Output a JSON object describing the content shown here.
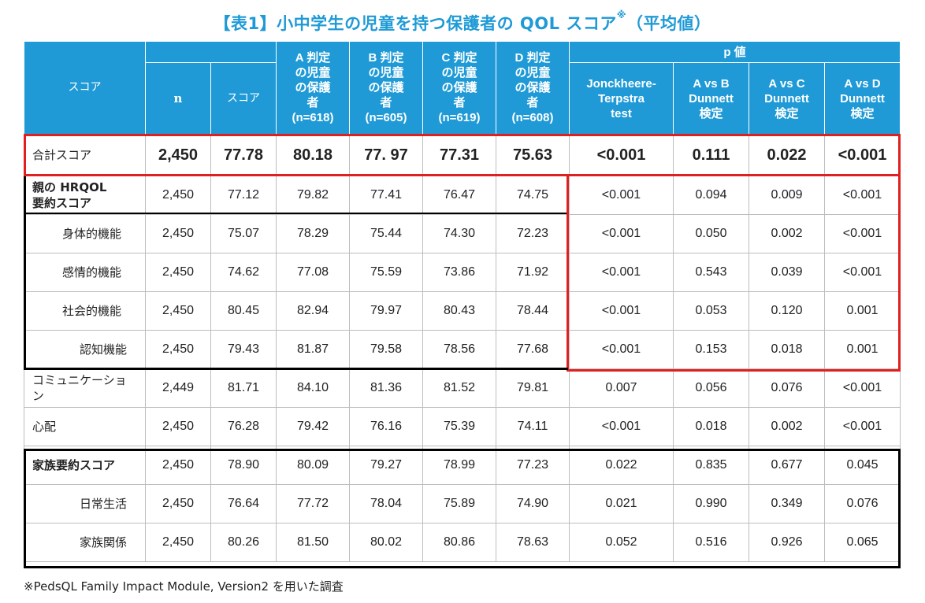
{
  "title": "【表1】小中学生の児童を持つ保護者の QOL スコア",
  "title_mark": "※",
  "title_suffix": "（平均値）",
  "headers": {
    "score": "スコア",
    "n": "n",
    "score_col": "スコア",
    "groups": [
      {
        "l1": "A 判定",
        "l2": "の児童",
        "l3": "の保護",
        "l4": "者",
        "l5": "(n=618)"
      },
      {
        "l1": "B 判定",
        "l2": "の児童",
        "l3": "の保護",
        "l4": "者",
        "l5": "(n=605)"
      },
      {
        "l1": "C 判定",
        "l2": "の児童",
        "l3": "の保護",
        "l4": "者",
        "l5": "(n=619)"
      },
      {
        "l1": "D 判定",
        "l2": "の児童",
        "l3": "の保護",
        "l4": "者",
        "l5": "(n=608)"
      }
    ],
    "p_value": "p 値",
    "tests": [
      {
        "l1": "Jonckheere-",
        "l2": "Terpstra",
        "l3": "test"
      },
      {
        "l1": "A vs B",
        "l2": "Dunnett",
        "l3": "検定"
      },
      {
        "l1": "A vs C",
        "l2": "Dunnett",
        "l3": "検定"
      },
      {
        "l1": "A vs D",
        "l2": "Dunnett",
        "l3": "検定"
      }
    ]
  },
  "rows": [
    {
      "label": "合計スコア",
      "v": [
        "2,450",
        "77.78",
        "80.18",
        "77. 97",
        "77.31",
        "75.63",
        "<0.001",
        "0.111",
        "0.022",
        "<0.001"
      ]
    },
    {
      "label": "親の HRQOL",
      "label2": "要約スコア",
      "v": [
        "2,450",
        "77.12",
        "79.82",
        "77.41",
        "76.47",
        "74.75",
        "<0.001",
        "0.094",
        "0.009",
        "<0.001"
      ]
    },
    {
      "label": "身体的機能",
      "v": [
        "2,450",
        "75.07",
        "78.29",
        "75.44",
        "74.30",
        "72.23",
        "<0.001",
        "0.050",
        "0.002",
        "<0.001"
      ]
    },
    {
      "label": "感情的機能",
      "v": [
        "2,450",
        "74.62",
        "77.08",
        "75.59",
        "73.86",
        "71.92",
        "<0.001",
        "0.543",
        "0.039",
        "<0.001"
      ]
    },
    {
      "label": "社会的機能",
      "v": [
        "2,450",
        "80.45",
        "82.94",
        "79.97",
        "80.43",
        "78.44",
        "<0.001",
        "0.053",
        "0.120",
        "0.001"
      ]
    },
    {
      "label": "認知機能",
      "v": [
        "2,450",
        "79.43",
        "81.87",
        "79.58",
        "78.56",
        "77.68",
        "<0.001",
        "0.153",
        "0.018",
        "0.001"
      ]
    },
    {
      "label": "コミュニケーショ",
      "label2": "ン",
      "v": [
        "2,449",
        "81.71",
        "84.10",
        "81.36",
        "81.52",
        "79.81",
        "0.007",
        "0.056",
        "0.076",
        "<0.001"
      ]
    },
    {
      "label": "心配",
      "v": [
        "2,450",
        "76.28",
        "79.42",
        "76.16",
        "75.39",
        "74.11",
        "<0.001",
        "0.018",
        "0.002",
        "<0.001"
      ]
    },
    {
      "label": "家族要約スコア",
      "v": [
        "2,450",
        "78.90",
        "80.09",
        "79.27",
        "78.99",
        "77.23",
        "0.022",
        "0.835",
        "0.677",
        "0.045"
      ]
    },
    {
      "label": "日常生活",
      "v": [
        "2,450",
        "76.64",
        "77.72",
        "78.04",
        "75.89",
        "74.90",
        "0.021",
        "0.990",
        "0.349",
        "0.076"
      ]
    },
    {
      "label": "家族関係",
      "v": [
        "2,450",
        "80.26",
        "81.50",
        "80.02",
        "80.86",
        "78.63",
        "0.052",
        "0.516",
        "0.926",
        "0.065"
      ]
    }
  ],
  "footnote": "※PedsQL Family Impact Module, Version2 を用いた調査",
  "colors": {
    "header_bg": "#1f9ad6",
    "title": "#1f9ad6",
    "highlight_red": "#e02020",
    "box_black": "#000000"
  }
}
